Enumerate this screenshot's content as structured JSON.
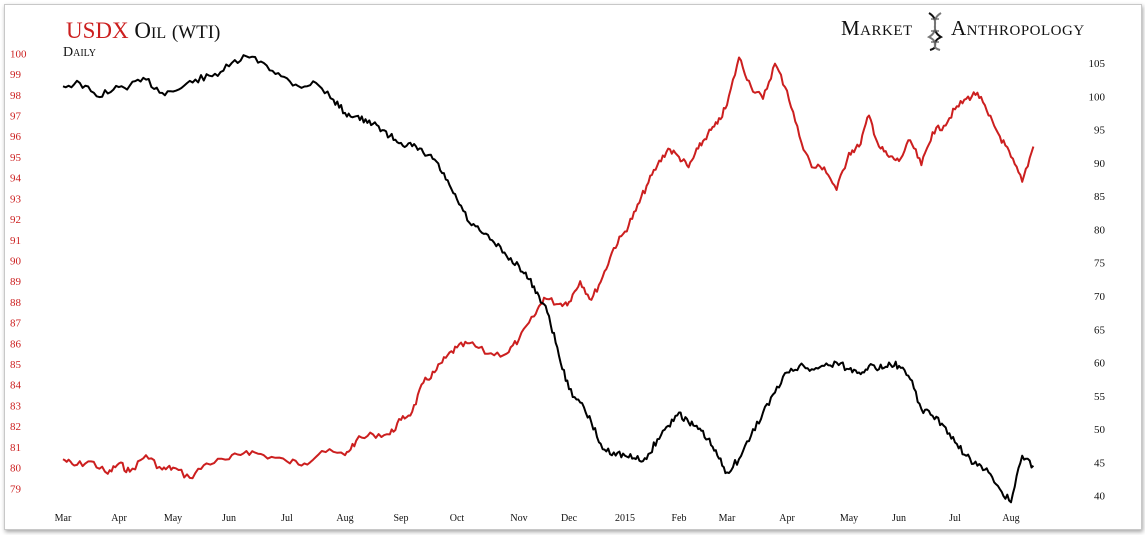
{
  "header": {
    "title_usdx": "USDX",
    "title_oil": "Oil",
    "title_oil_suffix": "(WTI)",
    "subtitle": "Daily",
    "brand_left": "Market",
    "brand_right": "Anthropology",
    "logo_icon": "dna-helix-icon"
  },
  "colors": {
    "usdx": "#cc1f1f",
    "oil": "#000000"
  },
  "chart_data": {
    "type": "line",
    "title": "USDX Oil (WTI)",
    "subtitle": "Daily",
    "x_labels": [
      "Mar",
      "Apr",
      "May",
      "Jun",
      "Jul",
      "Aug",
      "Sep",
      "Oct",
      "Nov",
      "Dec",
      "2015",
      "Feb",
      "Mar",
      "Apr",
      "May",
      "Jun",
      "Jul",
      "Aug"
    ],
    "left_axis": {
      "series": "USDX",
      "ylim": [
        78,
        100.5
      ],
      "ticks": [
        79,
        80,
        81,
        82,
        83,
        84,
        85,
        86,
        87,
        88,
        89,
        90,
        91,
        92,
        93,
        94,
        95,
        96,
        97,
        98,
        99,
        100
      ]
    },
    "right_axis": {
      "series": "Oil (WTI)",
      "ylim": [
        38,
        108
      ],
      "ticks": [
        40,
        45,
        50,
        55,
        60,
        65,
        70,
        75,
        80,
        85,
        90,
        95,
        100,
        105
      ]
    },
    "grid": false,
    "series": [
      {
        "name": "USDX",
        "axis": "left",
        "x": [
          0,
          0.2,
          0.5,
          0.8,
          1.0,
          1.2,
          1.5,
          1.8,
          2.0,
          2.3,
          2.6,
          3.0,
          3.3,
          3.6,
          4.0,
          4.3,
          4.6,
          5.0,
          5.2,
          5.5,
          5.8,
          6.0,
          6.2,
          6.4,
          6.6,
          6.8,
          7.0,
          7.2,
          7.5,
          7.8,
          8.0,
          8.3,
          8.5,
          8.8,
          9.0,
          9.2,
          9.4,
          9.6,
          9.8,
          10.0,
          10.2,
          10.4,
          10.6,
          10.8,
          11.0,
          11.2,
          11.4,
          11.6,
          11.8,
          12.0,
          12.2,
          12.4,
          12.6,
          12.8,
          13.0,
          13.2,
          13.4,
          13.6,
          13.8,
          14.0,
          14.2,
          14.4,
          14.6,
          14.8,
          15.0,
          15.2,
          15.4,
          15.6,
          15.8,
          16.0,
          16.2,
          16.4,
          16.6,
          16.8,
          17.0,
          17.2,
          17.4
        ],
        "values": [
          80.4,
          80.1,
          80.3,
          79.7,
          80.2,
          79.8,
          80.6,
          79.9,
          80.0,
          79.5,
          80.2,
          80.4,
          80.8,
          80.6,
          80.3,
          80.2,
          80.8,
          80.6,
          81.3,
          81.6,
          81.6,
          82.3,
          82.7,
          84.1,
          84.6,
          85.3,
          85.8,
          86.0,
          85.5,
          85.5,
          86.2,
          87.3,
          88.2,
          87.9,
          88.0,
          89.0,
          88.1,
          89.2,
          90.6,
          91.4,
          92.4,
          93.6,
          94.6,
          95.4,
          95.0,
          94.5,
          95.4,
          96.1,
          96.6,
          97.5,
          99.8,
          98.4,
          97.8,
          99.5,
          98.2,
          96.0,
          94.5,
          94.5,
          93.4,
          95.2,
          95.5,
          97.0,
          95.5,
          95.0,
          94.8,
          95.8,
          94.6,
          96.2,
          96.5,
          97.3,
          97.8,
          98.1,
          97.0,
          96.0,
          95.0,
          93.8,
          95.5
        ]
      },
      {
        "name": "Oil (WTI)",
        "axis": "right",
        "x": [
          0,
          0.3,
          0.6,
          0.9,
          1.2,
          1.5,
          1.8,
          2.1,
          2.4,
          2.7,
          3.0,
          3.3,
          3.6,
          3.9,
          4.2,
          4.5,
          4.8,
          5.0,
          5.2,
          5.4,
          5.6,
          5.8,
          6.0,
          6.2,
          6.4,
          6.6,
          6.8,
          7.0,
          7.2,
          7.4,
          7.6,
          7.8,
          8.0,
          8.2,
          8.4,
          8.6,
          8.8,
          9.0,
          9.2,
          9.4,
          9.6,
          9.8,
          10.0,
          10.2,
          10.4,
          10.6,
          10.8,
          11.0,
          11.2,
          11.4,
          11.6,
          11.8,
          12.0,
          12.2,
          12.4,
          12.6,
          12.8,
          13.0,
          13.2,
          13.4,
          13.6,
          13.8,
          14.0,
          14.2,
          14.4,
          14.6,
          14.8,
          15.0,
          15.2,
          15.4,
          15.6,
          15.8,
          16.0,
          16.2,
          16.4,
          16.6,
          16.8,
          17.0,
          17.2,
          17.4
        ],
        "values": [
          101.5,
          102.0,
          100.0,
          101.0,
          101.6,
          102.5,
          100.5,
          101.0,
          102.5,
          103.0,
          104.5,
          106.0,
          105.0,
          103.0,
          101.5,
          102.0,
          99.5,
          97.5,
          97.0,
          96.0,
          95.5,
          94.0,
          93.0,
          92.5,
          91.5,
          90.5,
          87.5,
          84.5,
          81.0,
          79.5,
          78.0,
          76.0,
          74.5,
          72.5,
          70.0,
          67.0,
          61.0,
          56.0,
          54.0,
          51.0,
          47.0,
          46.5,
          46.0,
          45.5,
          45.5,
          48.5,
          50.5,
          52.5,
          51.0,
          50.0,
          48.5,
          46.0,
          43.5,
          45.5,
          49.0,
          52.5,
          55.5,
          58.5,
          59.5,
          59.0,
          59.5,
          60.0,
          59.0,
          58.5,
          59.5,
          59.0,
          60.0,
          59.5,
          57.5,
          53.0,
          52.0,
          50.5,
          48.0,
          46.0,
          44.5,
          43.5,
          41.0,
          39.0,
          46.0,
          44.5
        ]
      }
    ]
  }
}
